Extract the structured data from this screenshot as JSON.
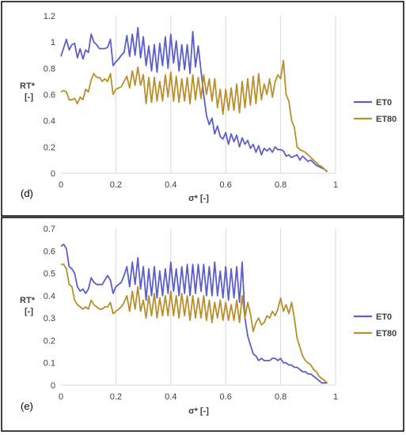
{
  "colors": {
    "ET0": "#5b5fc7",
    "ET80": "#b8902b",
    "grid": "#d9d9d9",
    "frame": "#000000"
  },
  "chart_data": [
    {
      "type": "line",
      "panel_label": "(d)",
      "xlabel": "σ* [-]",
      "ylabel_line1": "RT*",
      "ylabel_line2": "[-]",
      "xlim": [
        0,
        1
      ],
      "ylim": [
        0,
        1.2
      ],
      "xticks": [
        0,
        0.2,
        0.4,
        0.6,
        0.8,
        1
      ],
      "xtick_labels": [
        "0",
        "0.2",
        "0.4",
        "0.6",
        "0.8",
        "1"
      ],
      "yticks": [
        0,
        0.2,
        0.4,
        0.6,
        0.8,
        1,
        1.2
      ],
      "ytick_labels": [
        "0",
        "0.2",
        "0.4",
        "0.6",
        "0.8",
        "1",
        "1.2"
      ],
      "grid": "vertical",
      "legend": "right",
      "series": [
        {
          "name": "ET0",
          "color_key": "ET0",
          "x": [
            0.0,
            0.02,
            0.03,
            0.04,
            0.05,
            0.06,
            0.07,
            0.08,
            0.09,
            0.1,
            0.11,
            0.12,
            0.13,
            0.14,
            0.15,
            0.16,
            0.17,
            0.18,
            0.19,
            0.2,
            0.21,
            0.22,
            0.23,
            0.24,
            0.25,
            0.26,
            0.27,
            0.28,
            0.29,
            0.3,
            0.31,
            0.32,
            0.33,
            0.34,
            0.35,
            0.36,
            0.37,
            0.38,
            0.39,
            0.4,
            0.41,
            0.42,
            0.43,
            0.44,
            0.45,
            0.46,
            0.47,
            0.48,
            0.49,
            0.5,
            0.51,
            0.52,
            0.53,
            0.54,
            0.55,
            0.56,
            0.57,
            0.58,
            0.59,
            0.6,
            0.61,
            0.62,
            0.63,
            0.64,
            0.65,
            0.66,
            0.67,
            0.68,
            0.69,
            0.7,
            0.71,
            0.72,
            0.73,
            0.74,
            0.75,
            0.76,
            0.77,
            0.78,
            0.79,
            0.8,
            0.81,
            0.82,
            0.83,
            0.84,
            0.85,
            0.86,
            0.87,
            0.88,
            0.89,
            0.9,
            0.91,
            0.92,
            0.93,
            0.94,
            0.95,
            0.96,
            0.97
          ],
          "y": [
            0.89,
            1.02,
            0.94,
            0.98,
            0.99,
            0.88,
            0.95,
            0.87,
            0.94,
            0.92,
            1.06,
            1.0,
            0.98,
            0.95,
            0.95,
            0.95,
            0.96,
            1.02,
            0.82,
            0.85,
            0.87,
            0.9,
            0.92,
            1.05,
            0.89,
            1.06,
            0.9,
            1.11,
            0.88,
            1.04,
            0.82,
            0.97,
            0.78,
            0.98,
            0.77,
            0.99,
            0.82,
            1.04,
            0.8,
            1.06,
            0.84,
            1.01,
            0.78,
            0.98,
            0.79,
            0.98,
            0.76,
            1.08,
            0.81,
            0.97,
            0.78,
            0.6,
            0.44,
            0.37,
            0.42,
            0.3,
            0.36,
            0.28,
            0.26,
            0.31,
            0.22,
            0.3,
            0.24,
            0.29,
            0.2,
            0.27,
            0.22,
            0.25,
            0.19,
            0.22,
            0.16,
            0.21,
            0.14,
            0.19,
            0.17,
            0.19,
            0.16,
            0.2,
            0.18,
            0.18,
            0.17,
            0.13,
            0.14,
            0.12,
            0.13,
            0.14,
            0.1,
            0.13,
            0.11,
            0.09,
            0.1,
            0.08,
            0.06,
            0.05,
            0.04,
            0.03,
            0.01
          ]
        },
        {
          "name": "ET80",
          "color_key": "ET80",
          "x": [
            0.0,
            0.01,
            0.02,
            0.03,
            0.04,
            0.05,
            0.06,
            0.07,
            0.08,
            0.09,
            0.1,
            0.11,
            0.12,
            0.13,
            0.14,
            0.15,
            0.16,
            0.17,
            0.18,
            0.19,
            0.2,
            0.21,
            0.22,
            0.23,
            0.24,
            0.25,
            0.26,
            0.27,
            0.28,
            0.29,
            0.3,
            0.31,
            0.32,
            0.33,
            0.34,
            0.35,
            0.36,
            0.37,
            0.38,
            0.39,
            0.4,
            0.41,
            0.42,
            0.43,
            0.44,
            0.45,
            0.46,
            0.47,
            0.48,
            0.49,
            0.5,
            0.51,
            0.52,
            0.53,
            0.54,
            0.55,
            0.56,
            0.57,
            0.58,
            0.59,
            0.6,
            0.61,
            0.62,
            0.63,
            0.64,
            0.65,
            0.66,
            0.67,
            0.68,
            0.69,
            0.7,
            0.71,
            0.72,
            0.73,
            0.74,
            0.75,
            0.76,
            0.77,
            0.78,
            0.79,
            0.8,
            0.81,
            0.82,
            0.83,
            0.84,
            0.85,
            0.86,
            0.87,
            0.88,
            0.89,
            0.9,
            0.91,
            0.92,
            0.93,
            0.94,
            0.95,
            0.96,
            0.97
          ],
          "y": [
            0.62,
            0.63,
            0.62,
            0.56,
            0.56,
            0.57,
            0.53,
            0.58,
            0.56,
            0.64,
            0.62,
            0.71,
            0.76,
            0.73,
            0.73,
            0.7,
            0.72,
            0.7,
            0.76,
            0.6,
            0.64,
            0.65,
            0.66,
            0.7,
            0.74,
            0.65,
            0.78,
            0.67,
            0.81,
            0.67,
            0.75,
            0.53,
            0.73,
            0.54,
            0.73,
            0.55,
            0.7,
            0.55,
            0.75,
            0.58,
            0.77,
            0.55,
            0.74,
            0.54,
            0.72,
            0.55,
            0.73,
            0.53,
            0.75,
            0.56,
            0.73,
            0.57,
            0.75,
            0.6,
            0.72,
            0.55,
            0.72,
            0.5,
            0.64,
            0.45,
            0.64,
            0.48,
            0.65,
            0.48,
            0.68,
            0.46,
            0.7,
            0.5,
            0.72,
            0.52,
            0.74,
            0.53,
            0.76,
            0.56,
            0.68,
            0.6,
            0.72,
            0.58,
            0.7,
            0.75,
            0.72,
            0.86,
            0.6,
            0.55,
            0.4,
            0.35,
            0.2,
            0.18,
            0.17,
            0.16,
            0.14,
            0.12,
            0.1,
            0.08,
            0.06,
            0.05,
            0.03,
            0.01
          ]
        }
      ]
    },
    {
      "type": "line",
      "panel_label": "(e)",
      "xlabel": "σ* [-]",
      "ylabel_line1": "RT*",
      "ylabel_line2": "[-]",
      "xlim": [
        0,
        1
      ],
      "ylim": [
        0,
        0.7
      ],
      "xticks": [
        0,
        0.2,
        0.4,
        0.6,
        0.8,
        1
      ],
      "xtick_labels": [
        "0",
        "0.2",
        "0.4",
        "0.6",
        "0.8",
        "1"
      ],
      "yticks": [
        0,
        0.1,
        0.2,
        0.3,
        0.4,
        0.5,
        0.6,
        0.7
      ],
      "ytick_labels": [
        "0",
        "0.1",
        "0.2",
        "0.3",
        "0.4",
        "0.5",
        "0.6",
        "0.7"
      ],
      "grid": "vertical",
      "legend": "right",
      "series": [
        {
          "name": "ET0",
          "color_key": "ET0",
          "x": [
            0.0,
            0.01,
            0.02,
            0.03,
            0.04,
            0.05,
            0.06,
            0.07,
            0.08,
            0.09,
            0.1,
            0.11,
            0.12,
            0.13,
            0.14,
            0.15,
            0.16,
            0.17,
            0.18,
            0.19,
            0.2,
            0.21,
            0.22,
            0.23,
            0.24,
            0.25,
            0.26,
            0.27,
            0.28,
            0.29,
            0.3,
            0.31,
            0.32,
            0.33,
            0.34,
            0.35,
            0.36,
            0.37,
            0.38,
            0.39,
            0.4,
            0.41,
            0.42,
            0.43,
            0.44,
            0.45,
            0.46,
            0.47,
            0.48,
            0.49,
            0.5,
            0.51,
            0.52,
            0.53,
            0.54,
            0.55,
            0.56,
            0.57,
            0.58,
            0.59,
            0.6,
            0.61,
            0.62,
            0.63,
            0.64,
            0.65,
            0.66,
            0.67,
            0.68,
            0.69,
            0.7,
            0.71,
            0.72,
            0.73,
            0.74,
            0.75,
            0.76,
            0.77,
            0.78,
            0.79,
            0.8,
            0.81,
            0.82,
            0.83,
            0.84,
            0.85,
            0.86,
            0.87,
            0.88,
            0.89,
            0.9,
            0.91,
            0.92,
            0.93,
            0.94,
            0.95,
            0.96,
            0.97
          ],
          "y": [
            0.62,
            0.63,
            0.61,
            0.53,
            0.52,
            0.5,
            0.44,
            0.42,
            0.43,
            0.41,
            0.43,
            0.48,
            0.46,
            0.45,
            0.45,
            0.45,
            0.47,
            0.49,
            0.47,
            0.41,
            0.44,
            0.45,
            0.46,
            0.49,
            0.53,
            0.44,
            0.55,
            0.45,
            0.57,
            0.43,
            0.53,
            0.38,
            0.52,
            0.4,
            0.53,
            0.39,
            0.51,
            0.4,
            0.52,
            0.41,
            0.55,
            0.42,
            0.52,
            0.4,
            0.53,
            0.41,
            0.54,
            0.4,
            0.54,
            0.41,
            0.54,
            0.42,
            0.54,
            0.4,
            0.53,
            0.4,
            0.55,
            0.4,
            0.51,
            0.39,
            0.53,
            0.38,
            0.52,
            0.39,
            0.53,
            0.37,
            0.55,
            0.3,
            0.22,
            0.18,
            0.14,
            0.13,
            0.11,
            0.12,
            0.11,
            0.11,
            0.11,
            0.12,
            0.12,
            0.11,
            0.12,
            0.1,
            0.1,
            0.09,
            0.09,
            0.08,
            0.08,
            0.07,
            0.06,
            0.06,
            0.05,
            0.05,
            0.04,
            0.03,
            0.02,
            0.01,
            0.01,
            0.01
          ]
        },
        {
          "name": "ET80",
          "color_key": "ET80",
          "x": [
            0.0,
            0.01,
            0.02,
            0.03,
            0.04,
            0.05,
            0.06,
            0.07,
            0.08,
            0.09,
            0.1,
            0.11,
            0.12,
            0.13,
            0.14,
            0.15,
            0.16,
            0.17,
            0.18,
            0.19,
            0.2,
            0.21,
            0.22,
            0.23,
            0.24,
            0.25,
            0.26,
            0.27,
            0.28,
            0.29,
            0.3,
            0.31,
            0.32,
            0.33,
            0.34,
            0.35,
            0.36,
            0.37,
            0.38,
            0.39,
            0.4,
            0.41,
            0.42,
            0.43,
            0.44,
            0.45,
            0.46,
            0.47,
            0.48,
            0.49,
            0.5,
            0.51,
            0.52,
            0.53,
            0.54,
            0.55,
            0.56,
            0.57,
            0.58,
            0.59,
            0.6,
            0.61,
            0.62,
            0.63,
            0.64,
            0.65,
            0.66,
            0.67,
            0.68,
            0.69,
            0.7,
            0.71,
            0.72,
            0.73,
            0.74,
            0.75,
            0.76,
            0.77,
            0.78,
            0.79,
            0.8,
            0.81,
            0.82,
            0.83,
            0.84,
            0.85,
            0.86,
            0.87,
            0.88,
            0.89,
            0.9,
            0.91,
            0.92,
            0.93,
            0.94,
            0.95,
            0.96,
            0.97
          ],
          "y": [
            0.54,
            0.54,
            0.52,
            0.45,
            0.44,
            0.38,
            0.36,
            0.35,
            0.34,
            0.35,
            0.34,
            0.38,
            0.36,
            0.35,
            0.34,
            0.34,
            0.35,
            0.35,
            0.37,
            0.32,
            0.33,
            0.34,
            0.35,
            0.37,
            0.4,
            0.33,
            0.42,
            0.34,
            0.44,
            0.33,
            0.38,
            0.3,
            0.4,
            0.31,
            0.41,
            0.3,
            0.39,
            0.31,
            0.4,
            0.31,
            0.42,
            0.31,
            0.4,
            0.3,
            0.41,
            0.31,
            0.4,
            0.29,
            0.4,
            0.3,
            0.39,
            0.3,
            0.4,
            0.29,
            0.38,
            0.28,
            0.37,
            0.3,
            0.38,
            0.29,
            0.37,
            0.29,
            0.36,
            0.29,
            0.38,
            0.28,
            0.4,
            0.3,
            0.37,
            0.32,
            0.24,
            0.28,
            0.3,
            0.27,
            0.28,
            0.31,
            0.3,
            0.33,
            0.31,
            0.34,
            0.39,
            0.33,
            0.36,
            0.32,
            0.37,
            0.3,
            0.21,
            0.17,
            0.13,
            0.11,
            0.1,
            0.09,
            0.07,
            0.06,
            0.04,
            0.03,
            0.02,
            0.01
          ]
        }
      ]
    }
  ]
}
